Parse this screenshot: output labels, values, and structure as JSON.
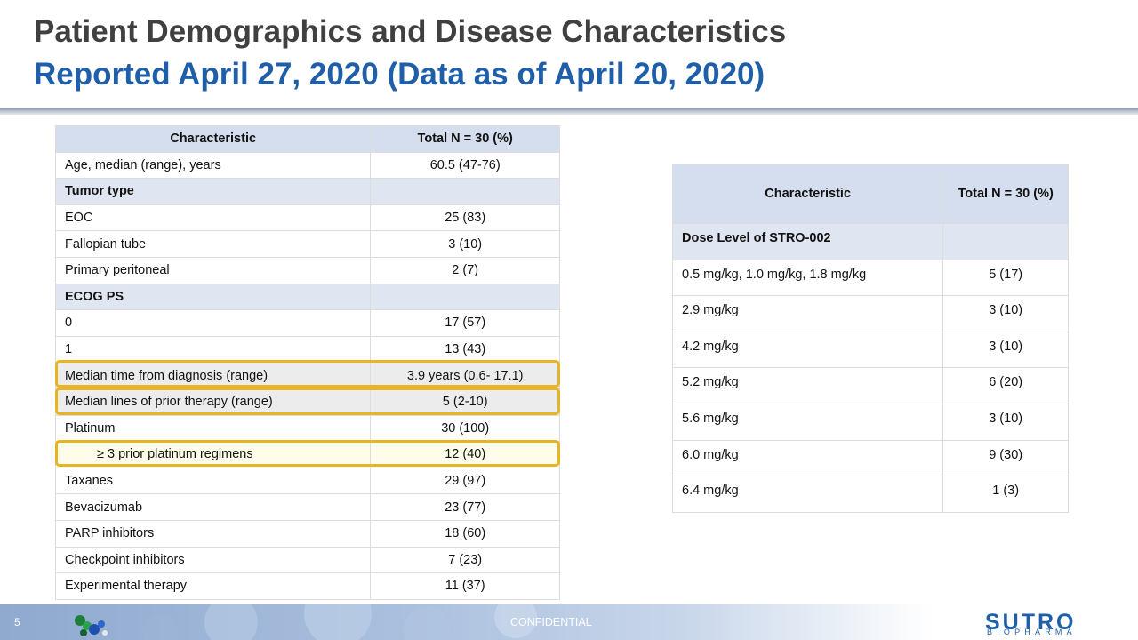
{
  "title": {
    "line1": "Patient Demographics and Disease Characteristics",
    "line2": "Reported April 27, 2020 (Data as of April 20, 2020)"
  },
  "colors": {
    "title_gray": "#404040",
    "title_blue": "#1f5ea8",
    "table_header": "#d5deee",
    "highlight_border": "#e8b423"
  },
  "left_table": {
    "headers": [
      "Characteristic",
      "Total N = 30 (%)"
    ],
    "rows": [
      {
        "label": "Age, median (range), years",
        "value": "60.5 (47-76)"
      },
      {
        "label": "Tumor type",
        "value": ""
      },
      {
        "label": "EOC",
        "value": "25 (83)"
      },
      {
        "label": "Fallopian tube",
        "value": "3 (10)"
      },
      {
        "label": "Primary peritoneal",
        "value": "2 (7)"
      },
      {
        "label": "ECOG PS",
        "value": ""
      },
      {
        "label": "0",
        "value": "17 (57)"
      },
      {
        "label": "1",
        "value": "13 (43)"
      },
      {
        "label": "Median time from diagnosis  (range)",
        "value": "3.9 years (0.6- 17.1)"
      },
      {
        "label": "Median lines of prior therapy (range)",
        "value": "5 (2-10)"
      },
      {
        "label": "Platinum",
        "value": "30 (100)"
      },
      {
        "label": "≥ 3 prior platinum  regimens",
        "value": "12 (40)"
      },
      {
        "label": "Taxanes",
        "value": "29 (97)"
      },
      {
        "label": "Bevacizumab",
        "value": "23 (77)"
      },
      {
        "label": "PARP inhibitors",
        "value": "18 (60)"
      },
      {
        "label": "Checkpoint inhibitors",
        "value": "7 (23)"
      },
      {
        "label": "Experimental therapy",
        "value": "11 (37)"
      }
    ]
  },
  "right_table": {
    "headers": [
      "Characteristic",
      "Total N = 30 (%)"
    ],
    "section": "Dose Level of STRO-002",
    "rows": [
      {
        "label": "0.5 mg/kg, 1.0 mg/kg, 1.8 mg/kg",
        "value": "5 (17)"
      },
      {
        "label": "2.9 mg/kg",
        "value": "3 (10)"
      },
      {
        "label": "4.2 mg/kg",
        "value": "3 (10)"
      },
      {
        "label": "5.2 mg/kg",
        "value": "6 (20)"
      },
      {
        "label": "5.6 mg/kg",
        "value": "3 (10)"
      },
      {
        "label": "6.0 mg/kg",
        "value": "9 (30)"
      },
      {
        "label": "6.4 mg/kg",
        "value": "1 (3)"
      }
    ]
  },
  "footer": {
    "page_number": "5",
    "confidential": "CONFIDENTIAL",
    "logo_main": "SUTRO",
    "logo_sub": "BIOPHARMA"
  }
}
